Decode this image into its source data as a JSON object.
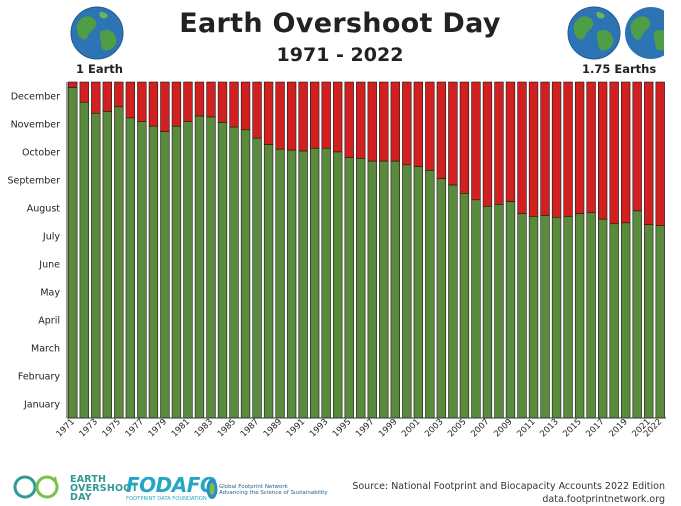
{
  "header": {
    "title": "Earth Overshoot Day",
    "subtitle": "1971 - 2022",
    "left_label": "1 Earth",
    "right_label": "1.75 Earths"
  },
  "footer": {
    "eod_logo_lines": [
      "EARTH",
      "OVERSHOOT",
      "DAY"
    ],
    "fodafo_logo": "FODAFO",
    "fodafo_sub": "FOOTPRINT DATA FOUNDATION",
    "gfn_logo_lines": [
      "Global Footprint Network",
      "Advancing the Science of Sustainability"
    ],
    "source_line1": "Source: National Footprint and Biocapacity Accounts 2022 Edition",
    "source_line2": "data.footprintnetwork.org"
  },
  "colors": {
    "overshoot_green": "#5a8a3b",
    "remaining_red": "#d21f1f",
    "bar_outline": "#1a1a1a"
  },
  "chart_data": {
    "type": "bar",
    "stacked": true,
    "x": [
      1971,
      1972,
      1973,
      1974,
      1975,
      1976,
      1977,
      1978,
      1979,
      1980,
      1981,
      1982,
      1983,
      1984,
      1985,
      1986,
      1987,
      1988,
      1989,
      1990,
      1991,
      1992,
      1993,
      1994,
      1995,
      1996,
      1997,
      1998,
      1999,
      2000,
      2001,
      2002,
      2003,
      2004,
      2005,
      2006,
      2007,
      2008,
      2009,
      2010,
      2011,
      2012,
      2013,
      2014,
      2015,
      2016,
      2017,
      2018,
      2019,
      2020,
      2021,
      2022
    ],
    "x_tick_labels": [
      "1971",
      "1973",
      "1975",
      "1977",
      "1979",
      "1981",
      "1983",
      "1985",
      "1987",
      "1989",
      "1991",
      "1993",
      "1995",
      "1997",
      "1999",
      "2001",
      "2003",
      "2005",
      "2007",
      "2009",
      "2011",
      "2013",
      "2015",
      "2017",
      "2019",
      "2021",
      "2022"
    ],
    "y_unit": "day of year",
    "y_tick_labels": [
      "January",
      "February",
      "March",
      "April",
      "May",
      "June",
      "July",
      "August",
      "September",
      "October",
      "November",
      "December"
    ],
    "ylim": [
      0,
      365
    ],
    "grid": false,
    "series": [
      {
        "values": [
          359,
          343,
          331,
          333,
          338,
          326,
          322,
          317,
          311,
          317,
          322,
          328,
          327,
          321,
          316,
          313,
          304,
          297,
          292,
          291,
          290,
          293,
          293,
          289,
          283,
          282,
          279,
          279,
          279,
          275,
          273,
          269,
          260,
          253,
          244,
          237,
          230,
          232,
          235,
          222,
          219,
          220,
          218,
          219,
          222,
          223,
          216,
          211,
          212,
          225,
          210,
          209
        ]
      }
    ]
  }
}
